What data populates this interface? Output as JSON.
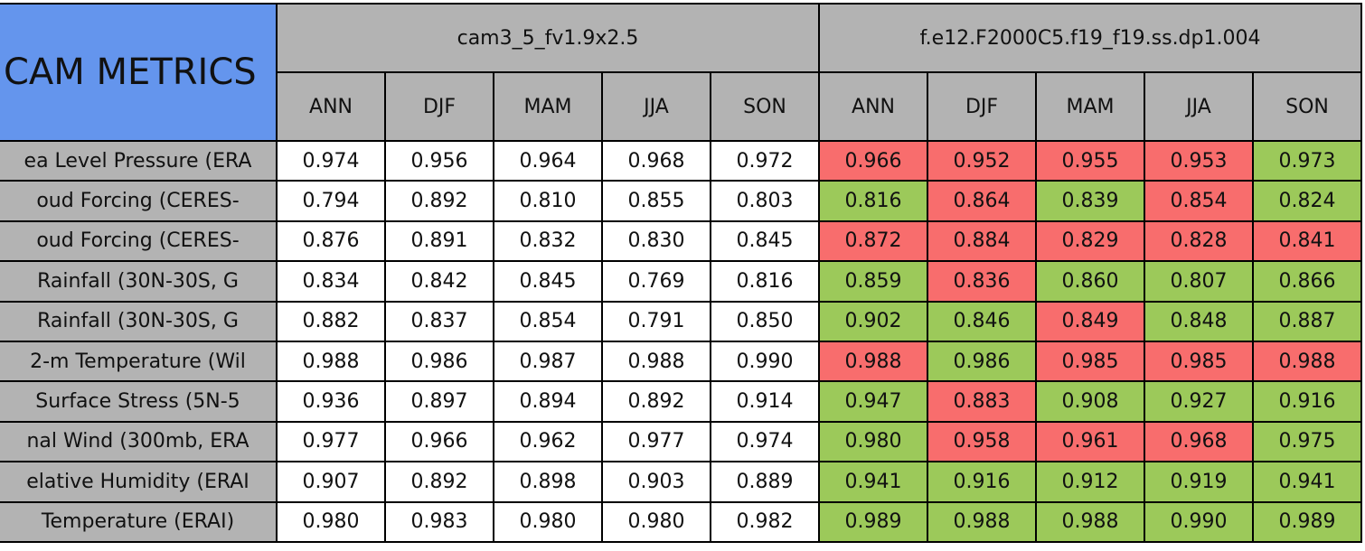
{
  "header": {
    "title": "CAM METRICS",
    "groups": [
      {
        "name": "cam3_5_fv1.9x2.5",
        "seasons": [
          "ANN",
          "DJF",
          "MAM",
          "JJA",
          "SON"
        ]
      },
      {
        "name": "f.e12.F2000C5.f19_f19.ss.dp1.004",
        "seasons": [
          "ANN",
          "DJF",
          "MAM",
          "JJA",
          "SON"
        ]
      }
    ]
  },
  "rows": [
    {
      "label": "ea Level Pressure (ERA",
      "values": [
        "0.974",
        "0.956",
        "0.964",
        "0.968",
        "0.972",
        "0.966",
        "0.952",
        "0.955",
        "0.953",
        "0.973"
      ],
      "colors": [
        "#ffffff",
        "#ffffff",
        "#ffffff",
        "#ffffff",
        "#ffffff",
        "#f86d6d",
        "#f86d6d",
        "#f86d6d",
        "#f86d6d",
        "#9cc95a"
      ]
    },
    {
      "label": "oud Forcing (CERES-",
      "values": [
        "0.794",
        "0.892",
        "0.810",
        "0.855",
        "0.803",
        "0.816",
        "0.864",
        "0.839",
        "0.854",
        "0.824"
      ],
      "colors": [
        "#ffffff",
        "#ffffff",
        "#ffffff",
        "#ffffff",
        "#ffffff",
        "#9cc95a",
        "#f86d6d",
        "#9cc95a",
        "#f86d6d",
        "#9cc95a"
      ]
    },
    {
      "label": "oud Forcing (CERES-",
      "values": [
        "0.876",
        "0.891",
        "0.832",
        "0.830",
        "0.845",
        "0.872",
        "0.884",
        "0.829",
        "0.828",
        "0.841"
      ],
      "colors": [
        "#ffffff",
        "#ffffff",
        "#ffffff",
        "#ffffff",
        "#ffffff",
        "#f86d6d",
        "#f86d6d",
        "#f86d6d",
        "#f86d6d",
        "#f86d6d"
      ]
    },
    {
      "label": "Rainfall (30N-30S, G",
      "values": [
        "0.834",
        "0.842",
        "0.845",
        "0.769",
        "0.816",
        "0.859",
        "0.836",
        "0.860",
        "0.807",
        "0.866"
      ],
      "colors": [
        "#ffffff",
        "#ffffff",
        "#ffffff",
        "#ffffff",
        "#ffffff",
        "#9cc95a",
        "#f86d6d",
        "#9cc95a",
        "#9cc95a",
        "#9cc95a"
      ]
    },
    {
      "label": "Rainfall (30N-30S, G",
      "values": [
        "0.882",
        "0.837",
        "0.854",
        "0.791",
        "0.850",
        "0.902",
        "0.846",
        "0.849",
        "0.848",
        "0.887"
      ],
      "colors": [
        "#ffffff",
        "#ffffff",
        "#ffffff",
        "#ffffff",
        "#ffffff",
        "#9cc95a",
        "#9cc95a",
        "#f86d6d",
        "#9cc95a",
        "#9cc95a"
      ]
    },
    {
      "label": "2-m Temperature (Wil",
      "values": [
        "0.988",
        "0.986",
        "0.987",
        "0.988",
        "0.990",
        "0.988",
        "0.986",
        "0.985",
        "0.985",
        "0.988"
      ],
      "colors": [
        "#ffffff",
        "#ffffff",
        "#ffffff",
        "#ffffff",
        "#ffffff",
        "#f86d6d",
        "#9cc95a",
        "#f86d6d",
        "#f86d6d",
        "#f86d6d"
      ]
    },
    {
      "label": "Surface Stress (5N-5",
      "values": [
        "0.936",
        "0.897",
        "0.894",
        "0.892",
        "0.914",
        "0.947",
        "0.883",
        "0.908",
        "0.927",
        "0.916"
      ],
      "colors": [
        "#ffffff",
        "#ffffff",
        "#ffffff",
        "#ffffff",
        "#ffffff",
        "#9cc95a",
        "#f86d6d",
        "#9cc95a",
        "#9cc95a",
        "#9cc95a"
      ]
    },
    {
      "label": "nal Wind (300mb, ERA",
      "values": [
        "0.977",
        "0.966",
        "0.962",
        "0.977",
        "0.974",
        "0.980",
        "0.958",
        "0.961",
        "0.968",
        "0.975"
      ],
      "colors": [
        "#ffffff",
        "#ffffff",
        "#ffffff",
        "#ffffff",
        "#ffffff",
        "#9cc95a",
        "#f86d6d",
        "#f86d6d",
        "#f86d6d",
        "#9cc95a"
      ]
    },
    {
      "label": "elative Humidity (ERAI",
      "values": [
        "0.907",
        "0.892",
        "0.898",
        "0.903",
        "0.889",
        "0.941",
        "0.916",
        "0.912",
        "0.919",
        "0.941"
      ],
      "colors": [
        "#ffffff",
        "#ffffff",
        "#ffffff",
        "#ffffff",
        "#ffffff",
        "#9cc95a",
        "#9cc95a",
        "#9cc95a",
        "#9cc95a",
        "#9cc95a"
      ]
    },
    {
      "label": "Temperature (ERAI)",
      "values": [
        "0.980",
        "0.983",
        "0.980",
        "0.980",
        "0.982",
        "0.989",
        "0.988",
        "0.988",
        "0.990",
        "0.989"
      ],
      "colors": [
        "#ffffff",
        "#ffffff",
        "#ffffff",
        "#ffffff",
        "#ffffff",
        "#9cc95a",
        "#9cc95a",
        "#9cc95a",
        "#9cc95a",
        "#9cc95a"
      ]
    }
  ]
}
